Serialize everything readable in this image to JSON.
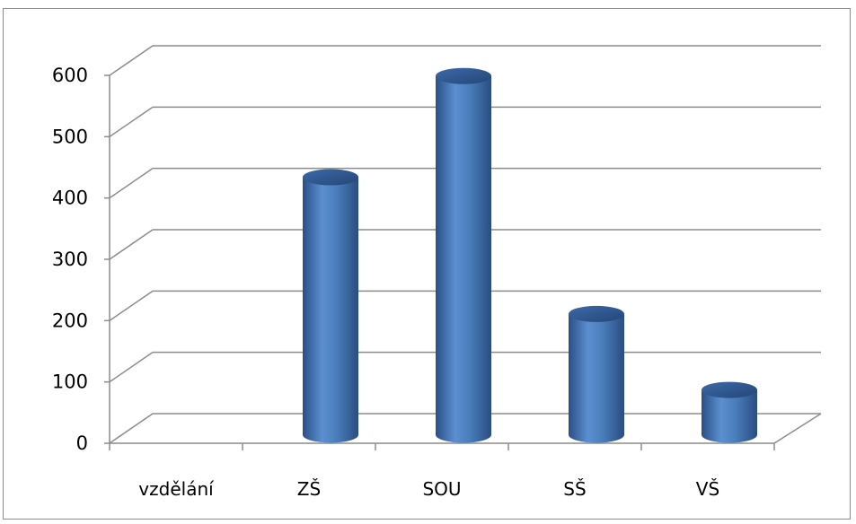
{
  "chart_data": {
    "type": "bar",
    "style": "3d-cylinder",
    "categories": [
      "vzdělání",
      "ZŠ",
      "SOU",
      "SŠ",
      "VŠ"
    ],
    "values": [
      0,
      420,
      585,
      197,
      73
    ],
    "ylim": [
      0,
      600
    ],
    "yticks": [
      "0",
      "100",
      "200",
      "300",
      "400",
      "500",
      "600"
    ],
    "grid": true,
    "legend": "none",
    "bar_color": "#4a7ebb"
  }
}
